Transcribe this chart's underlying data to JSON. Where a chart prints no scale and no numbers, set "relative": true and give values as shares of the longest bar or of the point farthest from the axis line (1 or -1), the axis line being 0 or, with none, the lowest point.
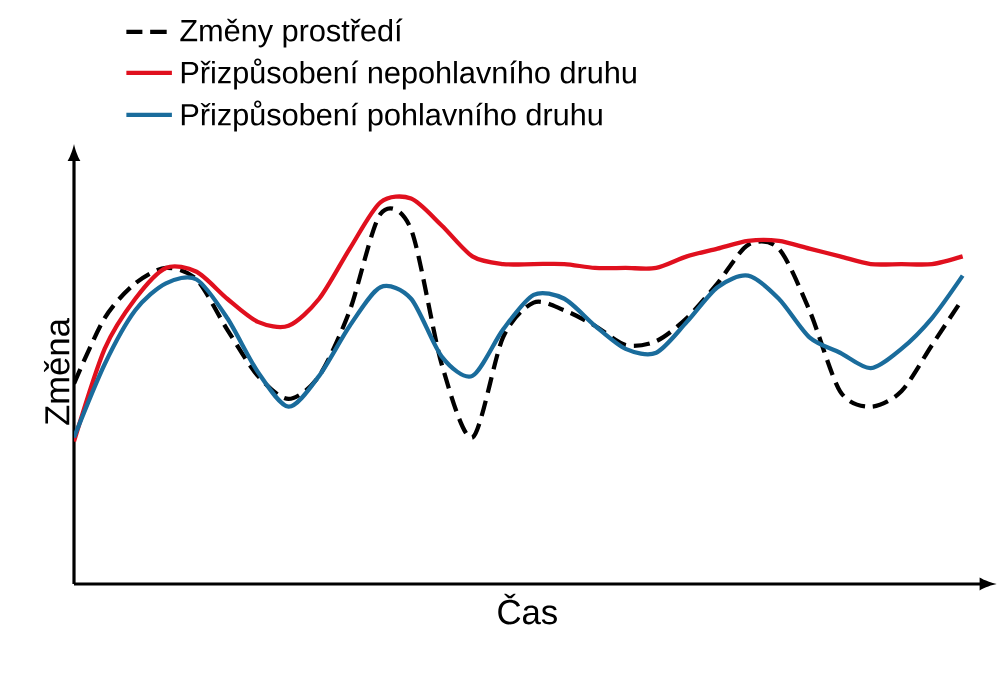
{
  "chart_data": {
    "type": "line",
    "relative": true,
    "xlabel": "Čas",
    "ylabel": "Změna",
    "legend": "top left",
    "marker": "none",
    "categories": [
      null,
      null,
      null,
      null,
      null,
      null,
      null,
      null,
      null,
      null,
      null,
      null,
      null,
      null,
      null,
      null,
      null,
      null,
      null,
      null,
      null,
      null,
      null,
      null,
      null,
      null,
      null,
      null,
      null,
      null
    ],
    "series": [
      {
        "name": "Změny prostředí",
        "color": "#000000",
        "line_style": "dashed",
        "values": [
          0.52,
          0.69,
          0.78,
          0.82,
          0.79,
          0.66,
          0.54,
          0.48,
          0.54,
          0.71,
          0.96,
          0.92,
          0.57,
          0.38,
          0.64,
          0.73,
          0.71,
          0.67,
          0.62,
          0.63,
          0.69,
          0.78,
          0.88,
          0.87,
          0.71,
          0.5,
          0.46,
          0.5,
          0.62,
          0.74
        ]
      },
      {
        "name": "Přizpůsobení nepohlavního druhu",
        "color": "#e0101e",
        "line_style": "solid",
        "values": [
          0.37,
          0.61,
          0.74,
          0.82,
          0.81,
          0.74,
          0.68,
          0.67,
          0.74,
          0.87,
          0.99,
          1,
          0.93,
          0.85,
          0.83,
          0.83,
          0.83,
          0.82,
          0.82,
          0.82,
          0.85,
          0.87,
          0.89,
          0.89,
          0.87,
          0.85,
          0.83,
          0.83,
          0.83,
          0.85
        ]
      },
      {
        "name": "Přizpůsobení pohlavního druhu",
        "color": "#1a6c9c",
        "line_style": "solid",
        "values": [
          0.38,
          0.57,
          0.71,
          0.78,
          0.79,
          0.69,
          0.55,
          0.46,
          0.54,
          0.67,
          0.77,
          0.74,
          0.59,
          0.54,
          0.66,
          0.75,
          0.74,
          0.67,
          0.61,
          0.6,
          0.68,
          0.77,
          0.8,
          0.74,
          0.64,
          0.6,
          0.56,
          0.61,
          0.69,
          0.8
        ]
      }
    ]
  }
}
